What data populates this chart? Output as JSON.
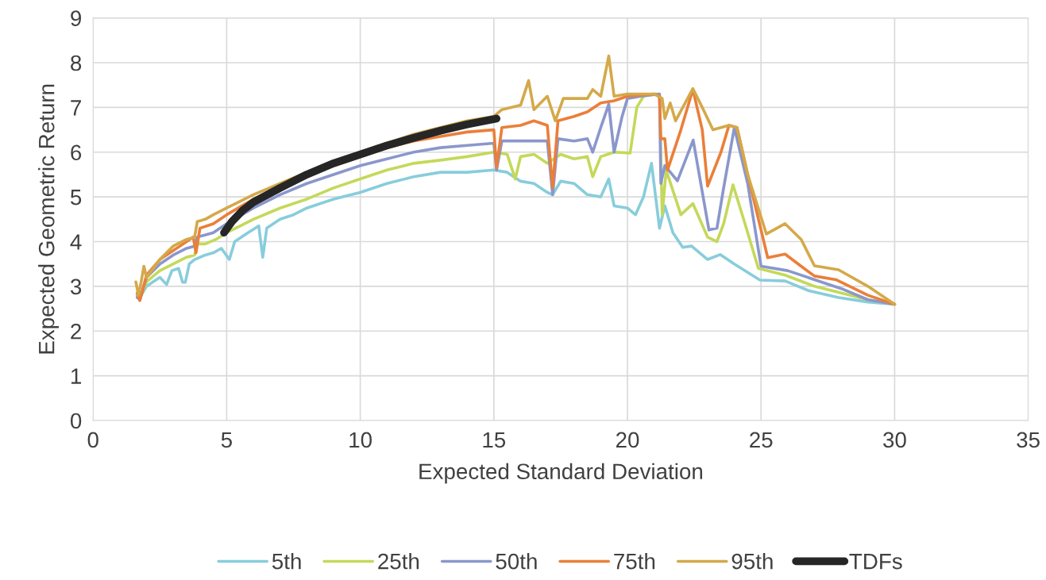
{
  "chart_data": {
    "type": "line",
    "xlabel": "Expected Standard Deviation",
    "ylabel": "Expected Geometric Return",
    "xlim": [
      0,
      35
    ],
    "xticks": [
      0,
      5,
      10,
      15,
      20,
      25,
      30,
      35
    ],
    "ylim": [
      0,
      9
    ],
    "yticks": [
      0,
      1,
      2,
      3,
      4,
      5,
      6,
      7,
      8,
      9
    ],
    "grid": true,
    "legend": "bottom",
    "marker": "none",
    "line_style": "solid",
    "series": [
      {
        "name": "5th",
        "color": "#88cddb",
        "x": [
          1.65,
          1.75,
          2.0,
          2.5,
          2.75,
          2.95,
          3.2,
          3.35,
          3.45,
          3.6,
          3.8,
          4.2,
          4.5,
          4.8,
          5.1,
          5.3,
          5.8,
          6.2,
          6.35,
          6.5,
          7.0,
          7.5,
          8.0,
          9,
          10,
          11,
          12,
          13,
          14,
          15,
          15.5,
          16,
          16.5,
          17,
          17.2,
          17.5,
          18,
          18.5,
          19,
          19.3,
          19.5,
          20,
          20.3,
          20.6,
          20.9,
          21.2,
          21.4,
          21.7,
          22.07,
          22.4,
          23.0,
          23.47,
          24,
          24.96,
          25.9,
          26.8,
          27.9,
          29,
          30
        ],
        "values": [
          2.8,
          2.75,
          3.0,
          3.2,
          3.04,
          3.35,
          3.4,
          3.09,
          3.09,
          3.5,
          3.6,
          3.7,
          3.75,
          3.85,
          3.6,
          4.0,
          4.2,
          4.35,
          3.65,
          4.3,
          4.5,
          4.6,
          4.75,
          4.95,
          5.1,
          5.3,
          5.45,
          5.55,
          5.55,
          5.6,
          5.55,
          5.35,
          5.3,
          5.1,
          5.05,
          5.35,
          5.3,
          5.05,
          5.0,
          5.4,
          4.8,
          4.75,
          4.6,
          5.0,
          5.75,
          4.3,
          4.8,
          4.2,
          3.87,
          3.9,
          3.6,
          3.71,
          3.5,
          3.14,
          3.12,
          2.9,
          2.75,
          2.65,
          2.6
        ]
      },
      {
        "name": "25th",
        "color": "#c4d95a",
        "x": [
          1.65,
          1.75,
          2,
          2.5,
          3,
          3.5,
          3.8,
          3.9,
          4.2,
          4.6,
          5,
          5.5,
          6,
          7,
          8,
          9,
          10,
          11,
          12,
          13,
          14,
          15,
          15.5,
          15.8,
          16,
          16.5,
          17,
          17.5,
          18,
          18.5,
          18.7,
          19,
          19.5,
          20.1,
          20.35,
          20.6,
          21,
          21.2,
          21.3,
          21.45,
          22.0,
          22.45,
          23.0,
          23.35,
          23.6,
          23.95,
          24.4,
          24.9,
          25.9,
          27,
          28,
          29,
          30
        ],
        "values": [
          2.8,
          2.72,
          3.1,
          3.35,
          3.5,
          3.65,
          3.7,
          3.95,
          3.95,
          4.05,
          4.2,
          4.35,
          4.5,
          4.75,
          4.95,
          5.2,
          5.4,
          5.6,
          5.75,
          5.82,
          5.9,
          6.0,
          5.95,
          5.4,
          5.9,
          5.95,
          5.75,
          5.95,
          5.85,
          5.9,
          5.45,
          5.9,
          6.0,
          5.98,
          7.0,
          7.25,
          7.3,
          7.3,
          4.6,
          5.6,
          4.6,
          4.85,
          4.1,
          4.0,
          4.4,
          5.27,
          4.4,
          3.4,
          3.25,
          3.0,
          2.85,
          2.7,
          2.6
        ]
      },
      {
        "name": "50th",
        "color": "#8a97cc",
        "x": [
          1.65,
          1.75,
          2,
          2.5,
          3,
          3.5,
          3.8,
          3.9,
          4.5,
          5,
          6,
          7,
          8,
          9,
          10,
          11,
          12,
          13,
          14,
          15,
          15.1,
          15.3,
          16,
          17,
          17.2,
          17.4,
          18,
          18.5,
          18.7,
          19,
          19.3,
          19.5,
          19.8,
          20.0,
          20.5,
          21.2,
          21.25,
          21.4,
          21.87,
          22.46,
          23.05,
          23.35,
          23.6,
          24.0,
          24.5,
          25.0,
          26,
          27,
          28,
          29,
          30
        ],
        "values": [
          2.75,
          2.7,
          3.2,
          3.5,
          3.7,
          3.85,
          3.9,
          4.1,
          4.2,
          4.4,
          4.75,
          5.05,
          5.3,
          5.5,
          5.7,
          5.85,
          6.0,
          6.1,
          6.15,
          6.2,
          5.6,
          6.25,
          6.25,
          6.25,
          5.05,
          6.3,
          6.25,
          6.3,
          6.0,
          6.55,
          7.07,
          6.0,
          6.8,
          7.2,
          7.25,
          7.3,
          5.3,
          5.7,
          5.36,
          6.27,
          4.26,
          4.3,
          5.2,
          6.55,
          5.3,
          3.45,
          3.35,
          3.15,
          2.95,
          2.7,
          2.6
        ]
      },
      {
        "name": "75th",
        "color": "#ea7f3a",
        "x": [
          1.65,
          1.75,
          2,
          2.5,
          3,
          3.5,
          3.75,
          3.85,
          4.0,
          4.5,
          5,
          6,
          7,
          8,
          9,
          10,
          11,
          12,
          13,
          14,
          15,
          15.1,
          15.3,
          16,
          16.5,
          17,
          17.2,
          17.4,
          18,
          18.5,
          19,
          19.5,
          20,
          21.0,
          21.2,
          21.25,
          21.4,
          21.5,
          22.0,
          22.45,
          22.8,
          23.0,
          23.5,
          23.8,
          24.1,
          24.5,
          25.25,
          25.9,
          26.5,
          27.0,
          27.8,
          29,
          30
        ],
        "values": [
          2.85,
          2.68,
          3.25,
          3.6,
          3.8,
          4.0,
          4.1,
          3.75,
          4.3,
          4.4,
          4.6,
          4.95,
          5.2,
          5.45,
          5.7,
          5.9,
          6.1,
          6.25,
          6.35,
          6.45,
          6.5,
          5.65,
          6.55,
          6.6,
          6.7,
          6.6,
          5.2,
          6.7,
          6.8,
          6.9,
          7.1,
          7.15,
          7.25,
          7.3,
          7.25,
          6.3,
          6.3,
          5.6,
          6.5,
          7.4,
          6.5,
          5.24,
          6.0,
          6.6,
          6.55,
          5.5,
          3.64,
          3.72,
          3.45,
          3.23,
          3.15,
          2.8,
          2.6
        ]
      },
      {
        "name": "95th",
        "color": "#d4a94a",
        "x": [
          1.6,
          1.7,
          1.8,
          1.9,
          2.0,
          2.5,
          3,
          3.5,
          3.8,
          3.9,
          4.2,
          4.5,
          5,
          6,
          7,
          8,
          9,
          10,
          11,
          12,
          13,
          14,
          15,
          15.3,
          16,
          16.3,
          16.5,
          17,
          17.3,
          17.6,
          18.5,
          18.7,
          19.0,
          19.3,
          19.5,
          20,
          21,
          21.3,
          21.4,
          21.6,
          21.8,
          22.45,
          22.8,
          23.2,
          23.8,
          24.1,
          24.5,
          25.2,
          25.9,
          26.5,
          27.0,
          27.9,
          29,
          30
        ],
        "values": [
          3.1,
          2.8,
          3.1,
          3.45,
          3.2,
          3.6,
          3.9,
          4.05,
          4.1,
          4.45,
          4.5,
          4.6,
          4.75,
          5.05,
          5.3,
          5.55,
          5.8,
          6.0,
          6.2,
          6.4,
          6.55,
          6.7,
          6.8,
          6.95,
          7.05,
          7.6,
          6.95,
          7.25,
          6.7,
          7.2,
          7.2,
          7.4,
          7.25,
          8.15,
          7.25,
          7.3,
          7.3,
          7.2,
          6.75,
          7.1,
          6.7,
          7.42,
          7.0,
          6.5,
          6.6,
          6.55,
          5.5,
          4.17,
          4.4,
          4.05,
          3.46,
          3.37,
          3.0,
          2.6
        ]
      },
      {
        "name": "TDFs",
        "color": "#262626",
        "x": [
          4.9,
          5.2,
          5.6,
          6,
          7,
          8,
          9,
          10,
          11,
          12,
          13,
          14,
          15.1
        ],
        "values": [
          4.2,
          4.45,
          4.7,
          4.88,
          5.2,
          5.5,
          5.75,
          5.95,
          6.15,
          6.32,
          6.48,
          6.62,
          6.75
        ]
      }
    ]
  }
}
